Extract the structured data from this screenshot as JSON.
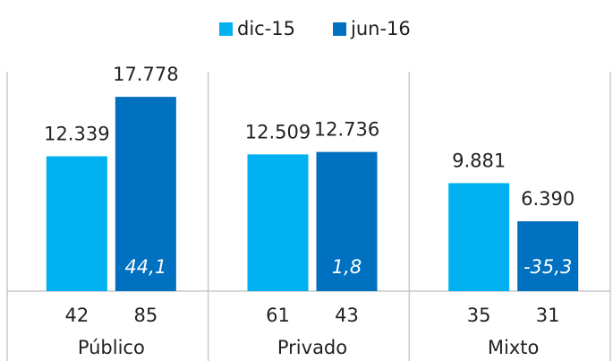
{
  "chart_data": {
    "type": "bar",
    "categories": [
      "Público",
      "Privado",
      "Mixto"
    ],
    "series": [
      {
        "name": "dic-15",
        "color": "#00b0f0",
        "values": [
          12339,
          12509,
          9881
        ],
        "value_labels": [
          "12.339",
          "12.509",
          "9.881"
        ],
        "counts": [
          42,
          61,
          35
        ]
      },
      {
        "name": "jun-16",
        "color": "#0070c0",
        "values": [
          17778,
          12736,
          6390
        ],
        "value_labels": [
          "17.778",
          "12.736",
          "6.390"
        ],
        "counts": [
          85,
          43,
          31
        ]
      }
    ],
    "change": [
      {
        "value": 44.1,
        "label": "44,1"
      },
      {
        "value": 1.8,
        "label": "1,8"
      },
      {
        "value": -35.3,
        "label": "-35,3"
      }
    ],
    "ylim": [
      0,
      20000
    ]
  }
}
